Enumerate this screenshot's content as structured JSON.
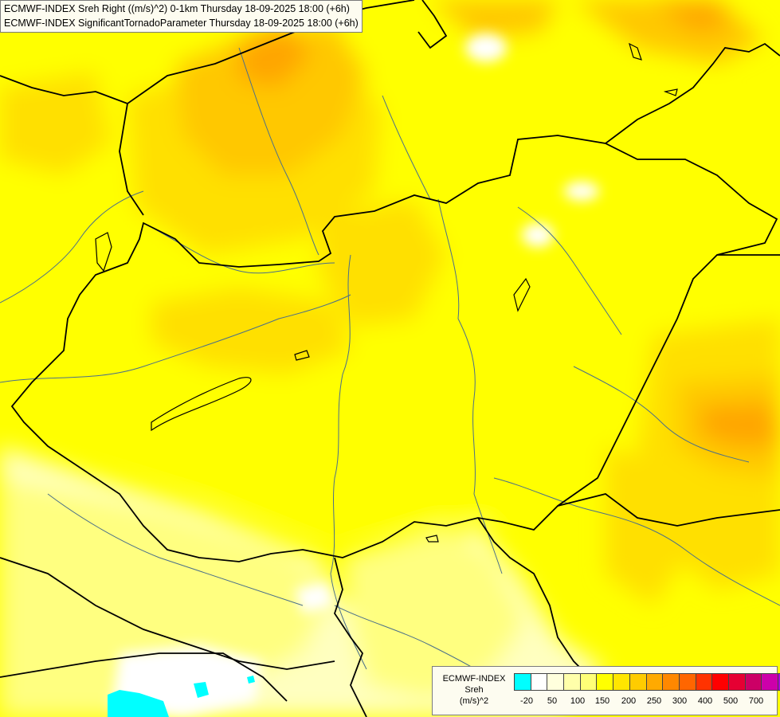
{
  "header": {
    "line1": "ECMWF-INDEX Sreh Right ((m/s)^2) 0-1km Thursday 18-09-2025 18:00 (+6h)",
    "line2": "ECMWF-INDEX SignificantTornadoParameter Thursday 18-09-2025 18:00 (+6h)"
  },
  "legend": {
    "title_line1": "ECMWF-INDEX",
    "title_line2": "Sreh",
    "title_line3": "(m/s)^2",
    "colors": [
      "#00ffff",
      "#ffffff",
      "#ffffdd",
      "#ffffaa",
      "#ffff77",
      "#ffff00",
      "#ffe600",
      "#ffcc00",
      "#ffaa00",
      "#ff8800",
      "#ff6600",
      "#ff3300",
      "#ff0000",
      "#e60033",
      "#cc0066",
      "#cc00aa",
      "#aa00dd",
      "#8800ee",
      "#5500cc",
      "#330099",
      "#000066"
    ],
    "ticks": [
      "-20",
      "50",
      "100",
      "150",
      "200",
      "250",
      "300",
      "400",
      "500",
      "700"
    ]
  },
  "map_colors": {
    "pale": "#ffffc0",
    "light": "#ffff80",
    "yellow": "#ffff00",
    "gold": "#ffe000",
    "amber": "#ffc800",
    "orange": "#ffa600",
    "white": "#ffffff",
    "cyan": "#00ffff",
    "border": "#000000",
    "river": "#4a6f8a"
  }
}
